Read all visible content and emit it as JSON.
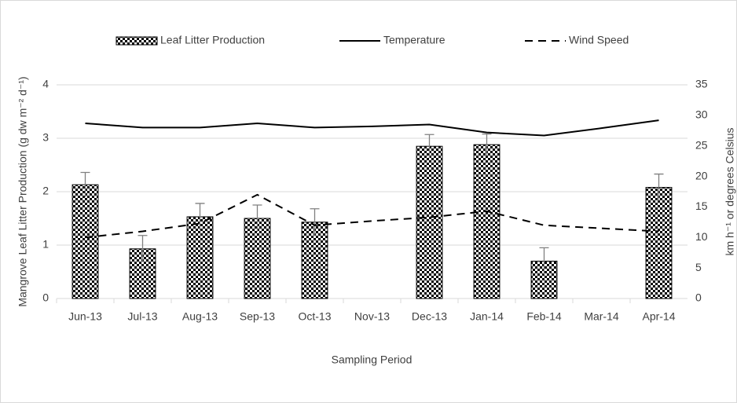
{
  "chart_data": {
    "type": "bar_line",
    "x_label": "Sampling Period",
    "y_label": "Mangrove Leaf Litter Production (g dw m⁻² d⁻¹)",
    "y2_label": "km h⁻¹ or degrees Celsius",
    "categories": [
      "Jun-13",
      "Jul-13",
      "Aug-13",
      "Sep-13",
      "Oct-13",
      "Nov-13",
      "Dec-13",
      "Jan-14",
      "Feb-14",
      "Mar-14",
      "Apr-14"
    ],
    "series": [
      {
        "name": "Leaf Litter Production",
        "type": "bar",
        "color": "#000000",
        "values": [
          2.13,
          0.93,
          1.53,
          1.5,
          1.43,
          null,
          2.85,
          2.88,
          0.7,
          null,
          2.08
        ],
        "errors": [
          0.23,
          0.25,
          0.25,
          0.25,
          0.25,
          null,
          0.22,
          0.2,
          0.25,
          null,
          0.25
        ]
      },
      {
        "name": "Temperature",
        "type": "line",
        "axis": "y2",
        "color": "#000000",
        "dash": "solid",
        "values": [
          28.7,
          28,
          28,
          28.7,
          28,
          28.2,
          28.5,
          27.2,
          26.7,
          27.9,
          29.2
        ]
      },
      {
        "name": "Wind Speed",
        "type": "line",
        "axis": "y2",
        "color": "#000000",
        "dash": "dashed",
        "values": [
          10,
          11,
          12.3,
          17,
          12,
          12.7,
          13.3,
          14.3,
          12,
          11.5,
          11
        ]
      }
    ],
    "ylim": [
      0,
      4
    ],
    "yticks": [
      0,
      1,
      2,
      3,
      4
    ],
    "y2lim": [
      0,
      35
    ],
    "y2ticks": [
      0,
      5,
      10,
      15,
      20,
      25,
      30,
      35
    ],
    "grid": true,
    "legend": "top"
  }
}
